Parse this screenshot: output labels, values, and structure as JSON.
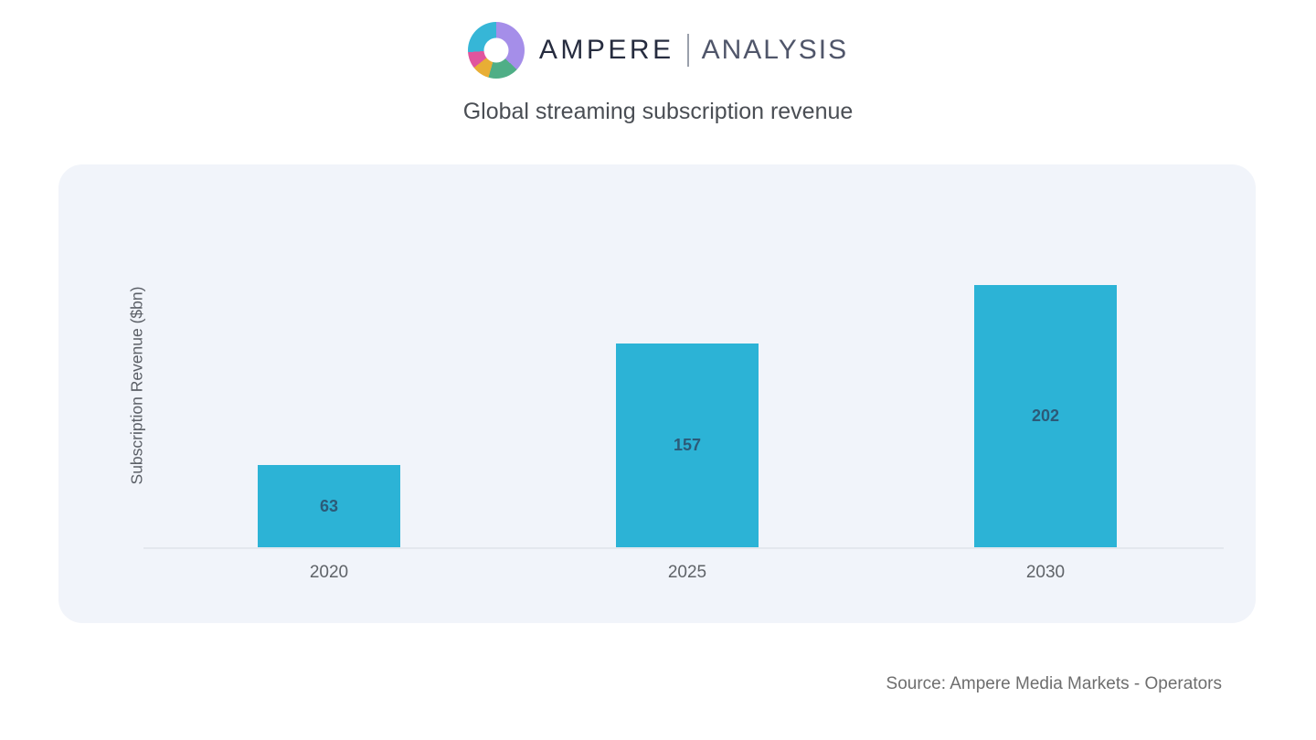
{
  "logo": {
    "primary": "AMPERE",
    "secondary": "ANALYSIS",
    "donut_segments": [
      {
        "name": "purple",
        "color": "#a58ee9",
        "from_deg": 0,
        "to_deg": 133
      },
      {
        "name": "green",
        "color": "#4fae86",
        "from_deg": 133,
        "to_deg": 196
      },
      {
        "name": "yellow",
        "color": "#e8ae35",
        "from_deg": 196,
        "to_deg": 232
      },
      {
        "name": "pink",
        "color": "#e0559d",
        "from_deg": 232,
        "to_deg": 266
      },
      {
        "name": "cyan",
        "color": "#36b6d7",
        "from_deg": 266,
        "to_deg": 360
      }
    ]
  },
  "title": "Global streaming subscription revenue",
  "chart_data": {
    "type": "bar",
    "categories": [
      "2020",
      "2025",
      "2030"
    ],
    "values": [
      63,
      157,
      202
    ],
    "title": "Global streaming subscription revenue",
    "xlabel": "",
    "ylabel": "Subscription Revenue ($bn)",
    "ylim": [
      0,
      210
    ],
    "grid": false,
    "legend": false,
    "bar_color": "#2cb3d6",
    "value_label_color": "#2c5a78",
    "panel_background": "#f1f4fa"
  },
  "source": "Source: Ampere Media Markets - Operators"
}
